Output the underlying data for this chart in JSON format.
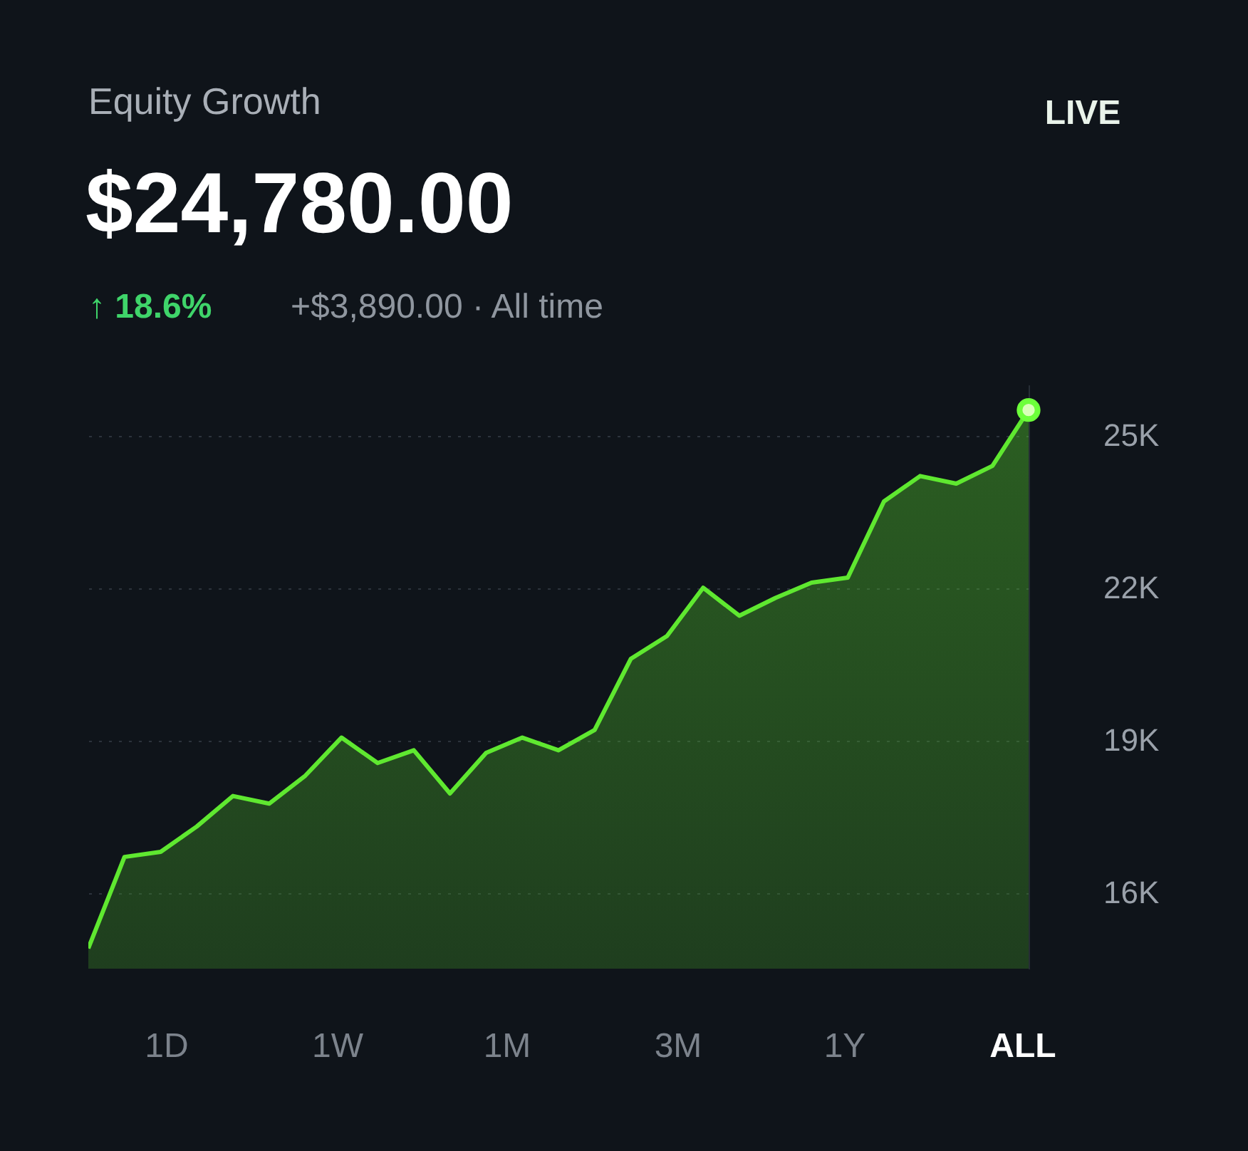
{
  "chart_data": {
    "type": "area",
    "title": "Equity Growth",
    "subtitle": "$24,780.00",
    "annotations": [
      "↑ 18.6%",
      "+$3,890.00 · All time",
      "LIVE",
      "1D",
      "1W",
      "1M",
      "3M",
      "1Y",
      "ALL"
    ],
    "categories": [
      null,
      null,
      null,
      null,
      null,
      null,
      null,
      null,
      null,
      null,
      null,
      null,
      null,
      null,
      null,
      null,
      null,
      null,
      null,
      null,
      null,
      null,
      null,
      null,
      null,
      null,
      null
    ],
    "series": [
      {
        "color": "#5fe830",
        "values": [
          14.9,
          16.7,
          16.8,
          17.3,
          17.9,
          17.75,
          18.3,
          19.05,
          18.55,
          18.8,
          17.95,
          18.75,
          19.05,
          18.8,
          19.2,
          20.6,
          21.05,
          22.0,
          21.45,
          21.8,
          22.1,
          22.2,
          23.7,
          24.2,
          24.05,
          24.4,
          25.5
        ]
      },
      {
        "type": "scatter",
        "marker": "circle",
        "color": "#d8ffb8",
        "values": [
          null,
          null,
          null,
          null,
          null,
          null,
          null,
          null,
          null,
          null,
          null,
          null,
          null,
          null,
          null,
          null,
          null,
          null,
          null,
          null,
          null,
          null,
          null,
          null,
          null,
          null,
          25.5
        ]
      }
    ],
    "ylim": [
      14.5,
      26
    ],
    "yticks": [
      {
        "value": 16,
        "label": "16K"
      },
      {
        "value": 19,
        "label": "19K"
      },
      {
        "value": 22,
        "label": "22K"
      },
      {
        "value": 25,
        "label": "25K"
      }
    ],
    "grid": "y",
    "marker": "none",
    "tick_labels": "y"
  }
}
